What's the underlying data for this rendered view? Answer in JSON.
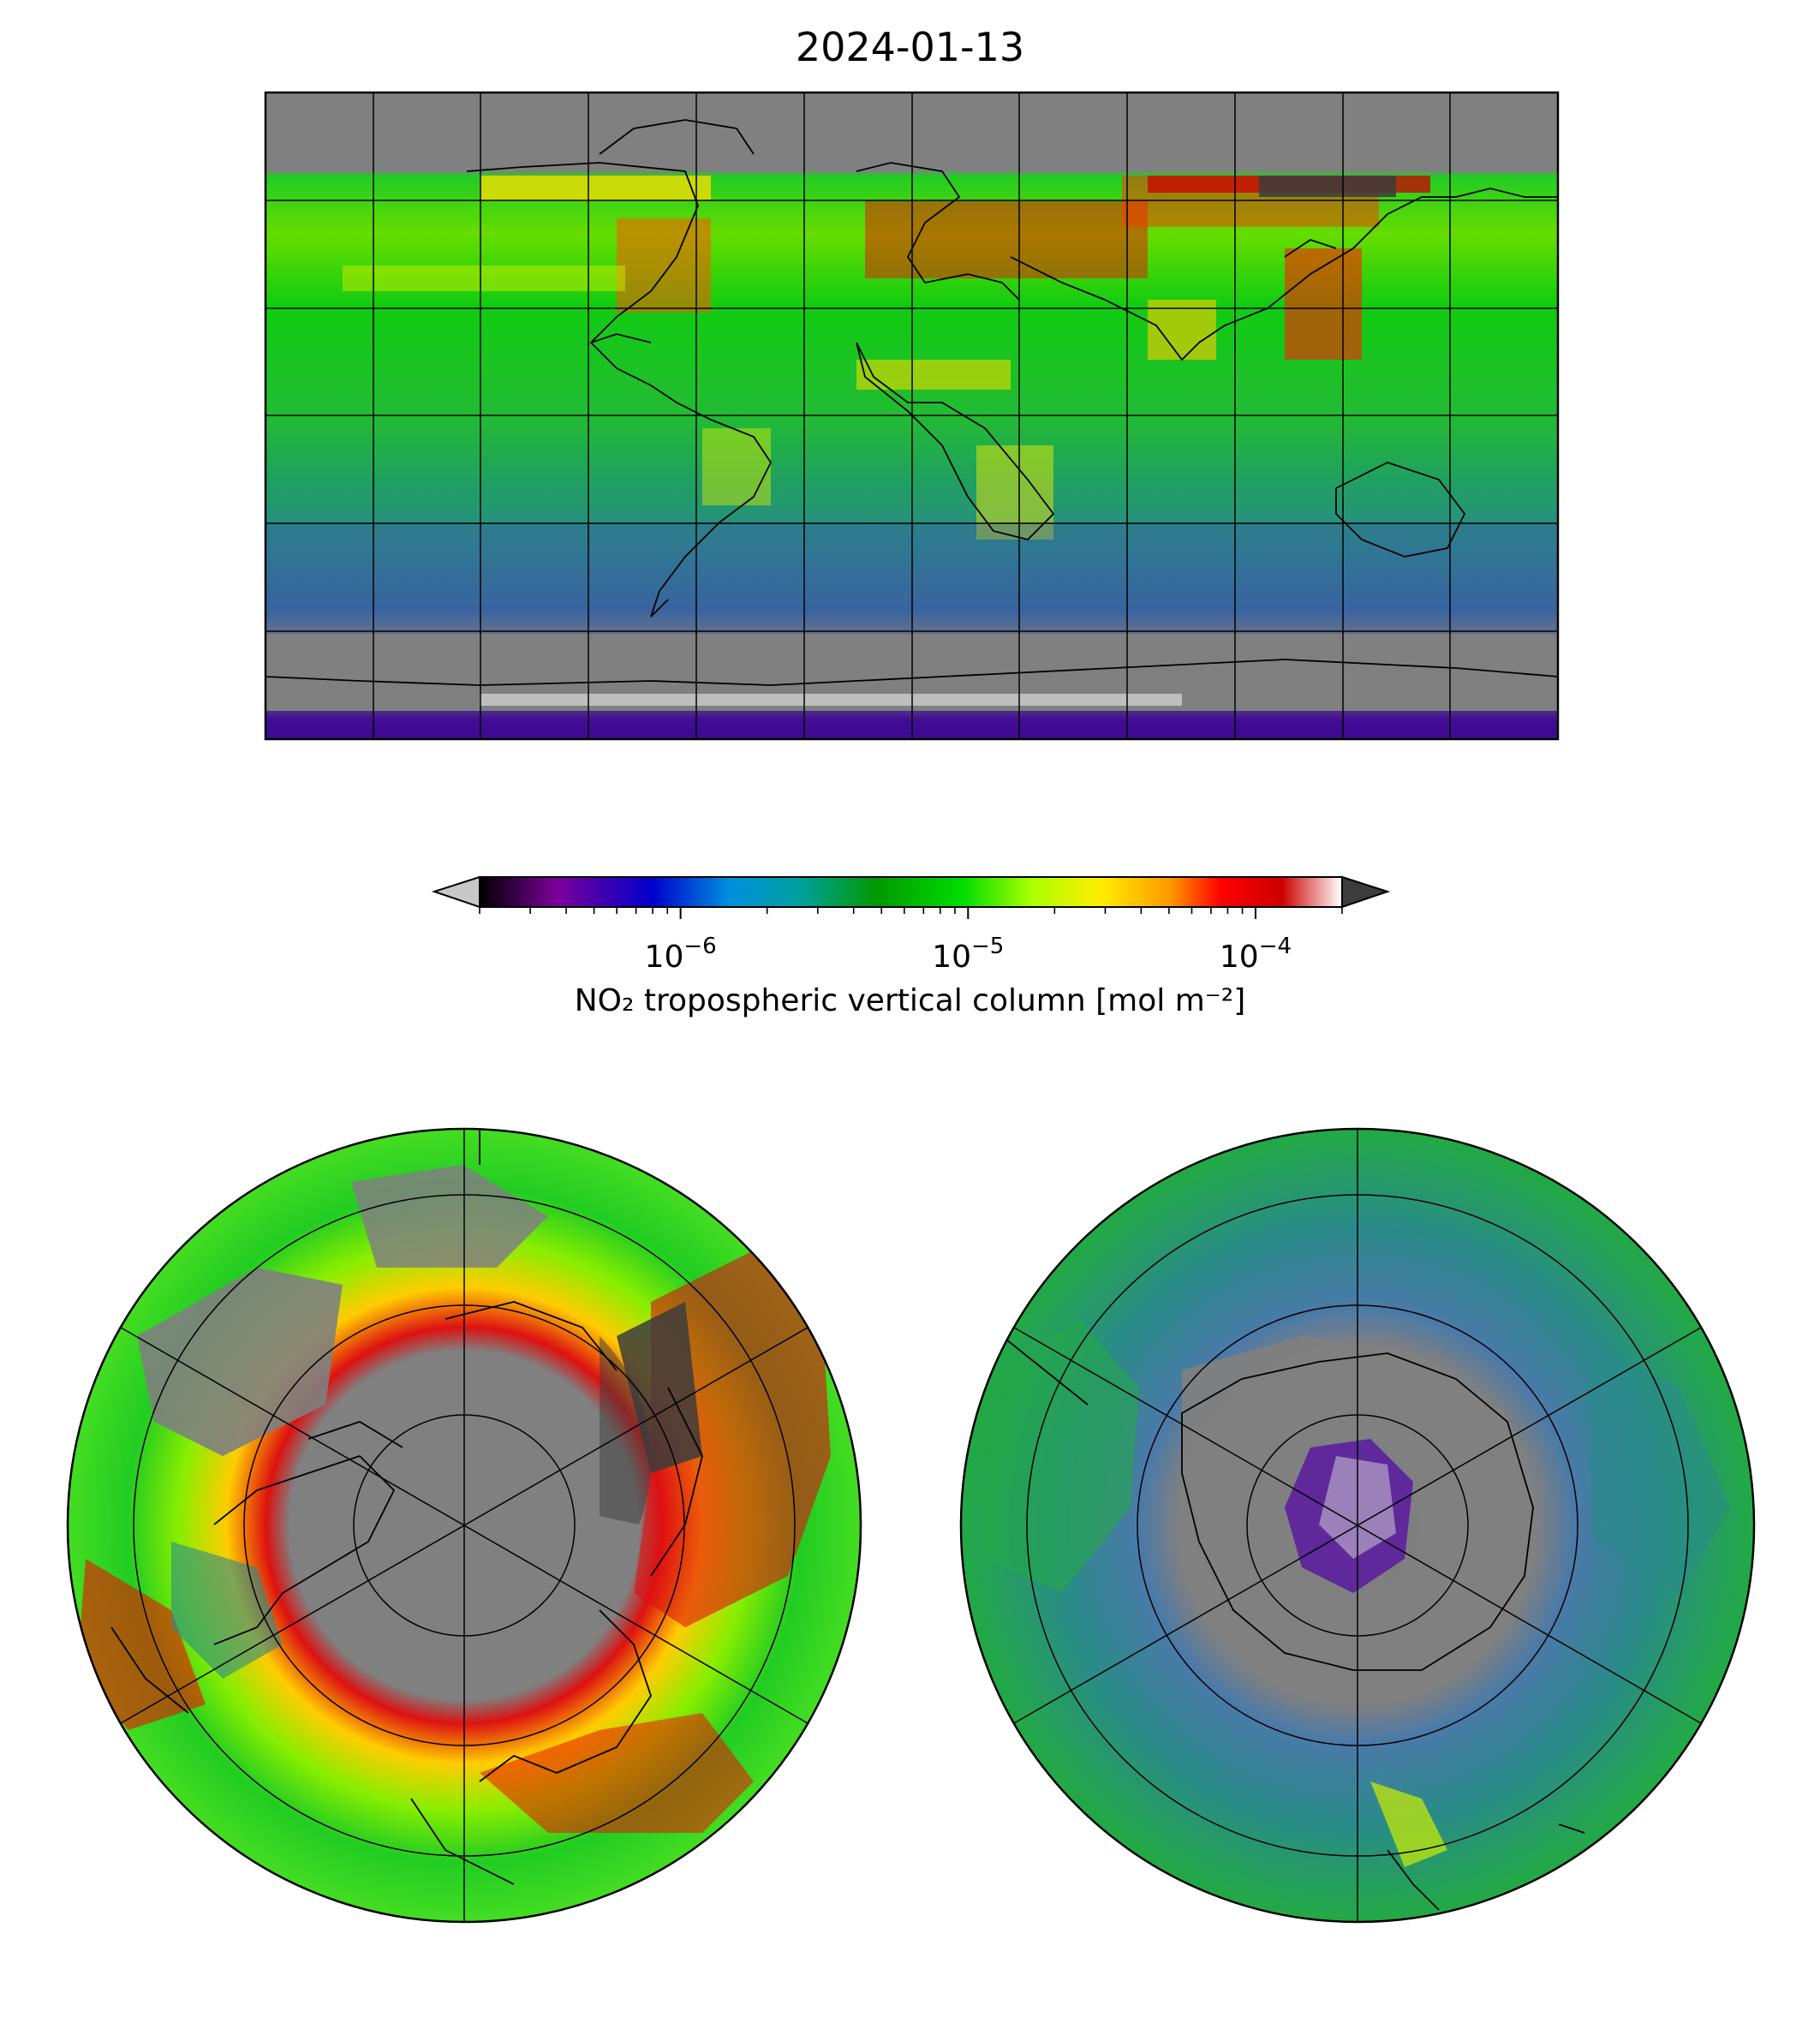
{
  "title": "2024-01-13",
  "colorbar": {
    "label": "NO₂ tropospheric vertical column [mol m⁻²]",
    "scale": "log",
    "vmin": 2e-07,
    "vmax": 0.0002,
    "extend": "both",
    "under_color": "#c8c8c8",
    "over_color": "#3c3c3c",
    "major_ticks": [
      {
        "value": 1e-06,
        "base": "10",
        "exp": "−6"
      },
      {
        "value": 1e-05,
        "base": "10",
        "exp": "−5"
      },
      {
        "value": 0.0001,
        "base": "10",
        "exp": "−4"
      }
    ],
    "colormap_stops": [
      "#000000",
      "#7a009a",
      "#0000cc",
      "#0090dd",
      "#00a0a0",
      "#009900",
      "#00dd00",
      "#aaff00",
      "#ffee00",
      "#ff9900",
      "#ff0000",
      "#cc0000",
      "#ffffff"
    ]
  },
  "colors": {
    "no_data": "#808080",
    "saturated": "#3c3c3c",
    "coast": "#000000"
  },
  "maps": [
    {
      "projection": "PlateCarree",
      "extent": "global"
    },
    {
      "projection": "NorthPolarStereo",
      "extent": "northern hemisphere"
    },
    {
      "projection": "SouthPolarStereo",
      "extent": "southern hemisphere"
    }
  ]
}
